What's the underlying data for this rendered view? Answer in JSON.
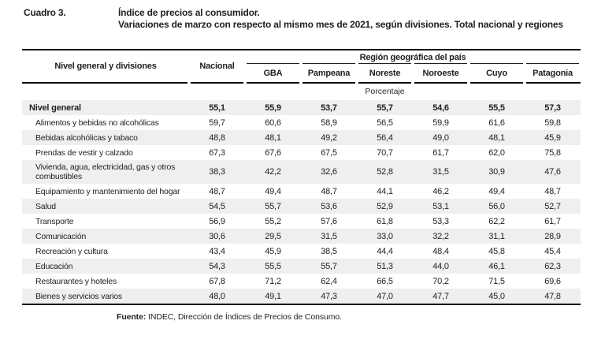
{
  "title": {
    "label": "Cuadro 3.",
    "line1": "Índice de precios al consumidor.",
    "line2": "Variaciones de marzo con respecto al mismo mes de 2021, según divisiones. Total nacional y regiones"
  },
  "table": {
    "col1_header": "Nivel general y divisiones",
    "nacional_header": "Nacional",
    "region_group_header": "Región geográfica del país",
    "region_headers": [
      "GBA",
      "Pampeana",
      "Noreste",
      "Noroeste",
      "Cuyo",
      "Patagonia"
    ],
    "unit_row": "Porcentaje",
    "columns": [
      "Nacional",
      "GBA",
      "Pampeana",
      "Noreste",
      "Noroeste",
      "Cuyo",
      "Patagonia"
    ],
    "rows": [
      {
        "label": "Nivel general",
        "bold": true,
        "values": [
          "55,1",
          "55,9",
          "53,7",
          "55,7",
          "54,6",
          "55,5",
          "57,3"
        ]
      },
      {
        "label": "Alimentos y bebidas no alcohólicas",
        "bold": false,
        "values": [
          "59,7",
          "60,6",
          "58,9",
          "56,5",
          "59,9",
          "61,6",
          "59,8"
        ]
      },
      {
        "label": "Bebidas alcohólicas y tabaco",
        "bold": false,
        "values": [
          "48,8",
          "48,1",
          "49,2",
          "56,4",
          "49,0",
          "48,1",
          "45,9"
        ]
      },
      {
        "label": "Prendas de vestir y calzado",
        "bold": false,
        "values": [
          "67,3",
          "67,6",
          "67,5",
          "70,7",
          "61,7",
          "62,0",
          "75,8"
        ]
      },
      {
        "label": "Vivienda, agua, electricidad, gas y otros combustibles",
        "bold": false,
        "values": [
          "38,3",
          "42,2",
          "32,6",
          "52,8",
          "31,5",
          "30,9",
          "47,6"
        ]
      },
      {
        "label": "Equipamiento y mantenimiento del hogar",
        "bold": false,
        "values": [
          "48,7",
          "49,4",
          "48,7",
          "44,1",
          "46,2",
          "49,4",
          "48,7"
        ]
      },
      {
        "label": "Salud",
        "bold": false,
        "values": [
          "54,5",
          "55,7",
          "53,6",
          "52,9",
          "53,1",
          "56,0",
          "52,7"
        ]
      },
      {
        "label": "Transporte",
        "bold": false,
        "values": [
          "56,9",
          "55,2",
          "57,6",
          "61,8",
          "53,3",
          "62,2",
          "61,7"
        ]
      },
      {
        "label": "Comunicación",
        "bold": false,
        "values": [
          "30,6",
          "29,5",
          "31,5",
          "33,0",
          "32,2",
          "31,1",
          "28,9"
        ]
      },
      {
        "label": "Recreación y cultura",
        "bold": false,
        "values": [
          "43,4",
          "45,9",
          "38,5",
          "44,4",
          "48,4",
          "45,8",
          "45,4"
        ]
      },
      {
        "label": "Educación",
        "bold": false,
        "values": [
          "54,3",
          "55,5",
          "55,7",
          "51,3",
          "44,0",
          "46,1",
          "62,3"
        ]
      },
      {
        "label": "Restaurantes y hoteles",
        "bold": false,
        "values": [
          "67,8",
          "71,2",
          "62,4",
          "66,5",
          "70,2",
          "71,5",
          "69,6"
        ]
      },
      {
        "label": "Bienes y servicios varios",
        "bold": false,
        "values": [
          "48,0",
          "49,1",
          "47,3",
          "47,0",
          "47,7",
          "45,0",
          "47,8"
        ]
      }
    ]
  },
  "footer": {
    "source_label": "Fuente:",
    "source_text": " INDEC, Dirección de Índices de Precios de Consumo."
  },
  "colors": {
    "stripe": "#efefef",
    "rule": "#000000",
    "text": "#1f1f1f"
  }
}
